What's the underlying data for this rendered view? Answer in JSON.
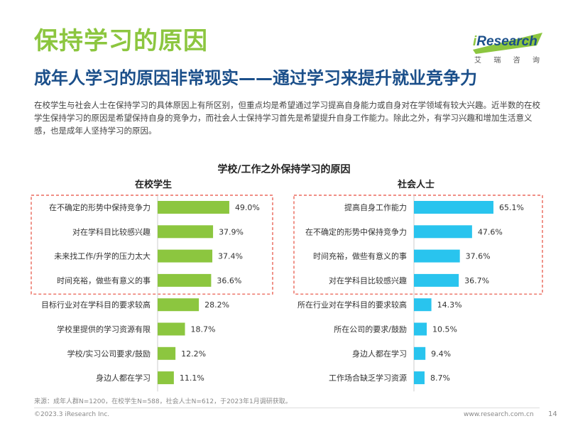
{
  "header": {
    "title": "保持学习的原因",
    "subtitle": "成年人学习的原因非常现实——通过学习来提升就业竞争力",
    "intro": "在校学生与社会人士在保持学习的具体原因上有所区别，但重点均是希望通过学习提高自身能力或自身对在学领域有较大兴趣。近半数的在校学生保持学习的原因是希望保持自身的竞争力，而社会人士保持学习首先是希望提升自身工作能力。除此之外，有学习兴趣和增加生活意义感，也是成年人坚持学习的原因。"
  },
  "logo": {
    "i": "i",
    "text": "Research",
    "sub": [
      "艾",
      "瑞",
      "咨",
      "询"
    ]
  },
  "chart_data": [
    {
      "type": "bar",
      "orientation": "horizontal",
      "title": "学校/工作之外保持学习的原因",
      "group": "在校学生",
      "categories": [
        "在不确定的形势中保持竞争力",
        "对在学科目比较感兴趣",
        "未来找工作/升学的压力太大",
        "时间充裕，做些有意义的事",
        "目标行业对在学科目的要求较高",
        "学校里提供的学习资源有限",
        "学校/实习公司要求/鼓励",
        "身边人都在学习"
      ],
      "values": [
        49.0,
        37.9,
        37.4,
        36.6,
        28.2,
        18.7,
        12.2,
        11.1
      ],
      "labels": [
        "49.0%",
        "37.9%",
        "37.4%",
        "36.6%",
        "28.2%",
        "18.7%",
        "12.2%",
        "11.1%"
      ],
      "unit": "%",
      "highlighted_top": 4,
      "color": "#8cc63f"
    },
    {
      "type": "bar",
      "orientation": "horizontal",
      "title": "学校/工作之外保持学习的原因",
      "group": "社会人士",
      "categories": [
        "提高自身工作能力",
        "在不确定的形势中保持竞争力",
        "时间充裕，做些有意义的事",
        "对在学科目比较感兴趣",
        "所在行业对在学科目的要求较高",
        "所在公司的要求/鼓励",
        "身边人都在学习",
        "工作场合缺乏学习资源"
      ],
      "values": [
        65.1,
        47.6,
        37.6,
        36.7,
        14.3,
        10.5,
        9.4,
        8.7
      ],
      "labels": [
        "65.1%",
        "47.6%",
        "37.6%",
        "36.7%",
        "14.3%",
        "10.5%",
        "9.4%",
        "8.7%"
      ],
      "unit": "%",
      "highlighted_top": 4,
      "color": "#29c4ee"
    }
  ],
  "footer": {
    "source": "来源：成年人群N=1200，在校学生N=588，社会人士N=612，于2023年1月调研获取。",
    "copyright": "©2023.3 iResearch Inc.",
    "website": "www.research.com.cn",
    "page": "14"
  },
  "colors": {
    "accent_green": "#8cc63f",
    "accent_blue": "#29c4ee",
    "title_blue": "#1b4f8a",
    "highlight_border": "#e74c3c"
  }
}
